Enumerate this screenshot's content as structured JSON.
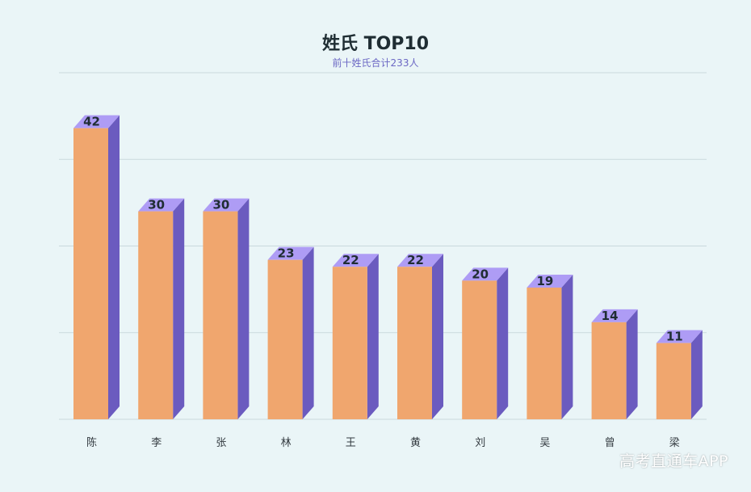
{
  "chart_data": {
    "type": "bar",
    "title": "姓氏 TOP10",
    "subtitle": "前十姓氏合计233人",
    "categories": [
      "陈",
      "李",
      "张",
      "林",
      "王",
      "黄",
      "刘",
      "吴",
      "曾",
      "梁"
    ],
    "values": [
      42,
      30,
      30,
      23,
      22,
      22,
      20,
      19,
      14,
      11
    ],
    "ylim": [
      0,
      50
    ],
    "grid": true,
    "data_labels": true,
    "colors": {
      "bar_front": "#f0a66e",
      "bar_side": "#6b5bbf",
      "bar_top": "#ae9cf5",
      "grid": "#c9d9dd"
    }
  },
  "watermark": "高考直通车APP"
}
